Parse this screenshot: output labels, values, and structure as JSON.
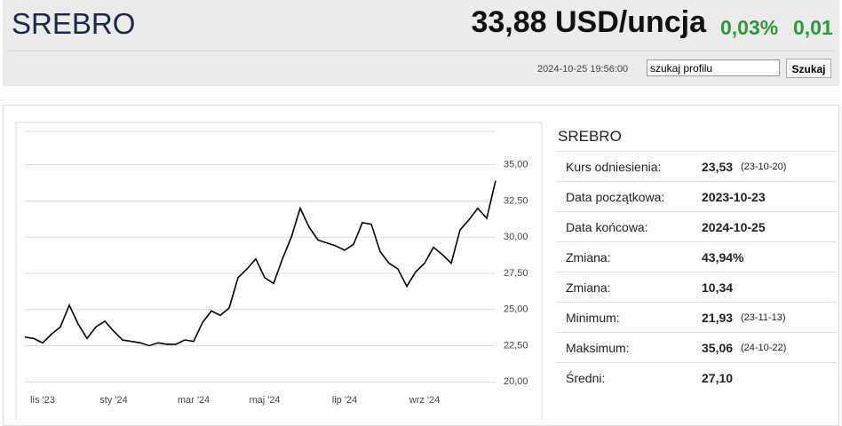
{
  "header": {
    "title": "SREBRO",
    "price": "33,88 USD/uncja",
    "change_pct": "0,03%",
    "change_abs": "0,01",
    "timestamp": "2024-10-25 19:56:00",
    "search_value": "szukaj profilu",
    "search_button": "Szukaj"
  },
  "chart_data": {
    "type": "line",
    "color": "#000000",
    "grid": true,
    "categories": [
      null,
      null,
      "lis '23",
      null,
      null,
      null,
      null,
      null,
      null,
      null,
      "sty '24",
      null,
      null,
      null,
      null,
      null,
      null,
      null,
      null,
      "mar '24",
      null,
      null,
      null,
      null,
      null,
      null,
      null,
      "maj '24",
      null,
      null,
      null,
      null,
      null,
      null,
      null,
      null,
      "lip '24",
      null,
      null,
      null,
      null,
      null,
      null,
      null,
      null,
      "wrz '24",
      null,
      null,
      null,
      null,
      null,
      null,
      null,
      null
    ],
    "values": [
      23.1,
      23.0,
      22.7,
      23.3,
      23.8,
      25.3,
      24.0,
      23.0,
      23.8,
      24.2,
      23.5,
      22.9,
      22.8,
      22.7,
      22.5,
      22.7,
      22.6,
      22.6,
      22.9,
      22.8,
      24.1,
      24.9,
      24.6,
      25.1,
      27.2,
      27.8,
      28.5,
      27.2,
      26.8,
      28.5,
      30.0,
      32.0,
      30.7,
      29.8,
      29.6,
      29.4,
      29.1,
      29.5,
      31.0,
      30.9,
      29.0,
      28.2,
      27.8,
      26.6,
      27.6,
      28.2,
      29.3,
      28.8,
      28.2,
      30.5,
      31.2,
      32.0,
      31.3,
      33.9
    ],
    "ylim": [
      19.1,
      37.8
    ],
    "yticks": [
      {
        "value": 20,
        "label": "20,00"
      },
      {
        "value": 22.5,
        "label": "22,50"
      },
      {
        "value": 25,
        "label": "25,00"
      },
      {
        "value": 27.5,
        "label": "27,50"
      },
      {
        "value": 30,
        "label": "30,00"
      },
      {
        "value": 32.5,
        "label": "32,50"
      },
      {
        "value": 35,
        "label": "35,00"
      }
    ]
  },
  "table": {
    "title": "SREBRO",
    "rows": [
      [
        "Kurs odniesienia:",
        "23,53",
        "(23-10-20)"
      ],
      [
        "Data początkowa:",
        "2023-10-23"
      ],
      [
        "Data końcowa:",
        "2024-10-25"
      ],
      [
        "Zmiana:",
        "43,94%"
      ],
      [
        "Zmiana:",
        "10,34"
      ],
      [
        "Minimum:",
        "21,93",
        "(23-11-13)"
      ],
      [
        "Maksimum:",
        "35,06",
        "(24-10-22)"
      ],
      [
        "Średni:",
        "27,10"
      ]
    ]
  }
}
